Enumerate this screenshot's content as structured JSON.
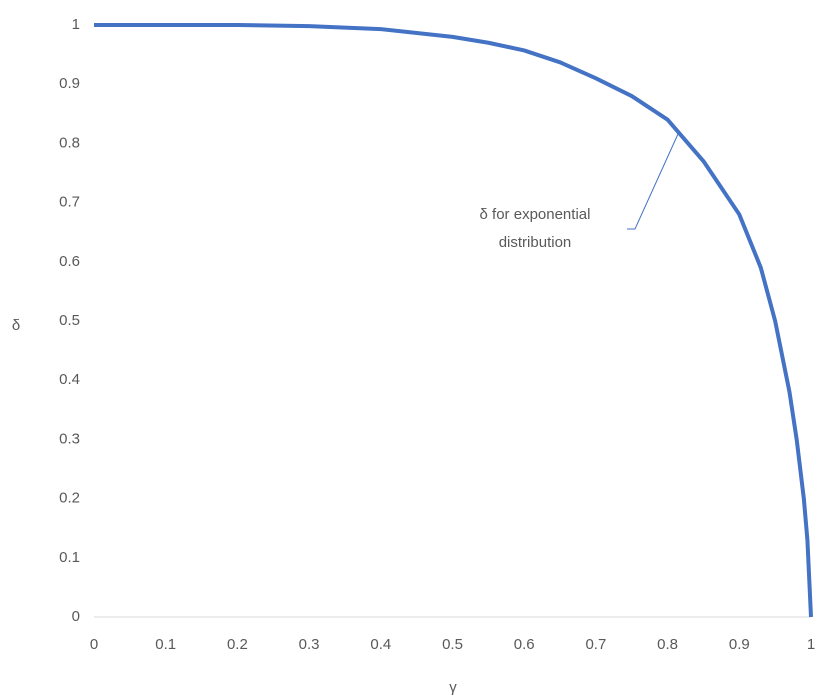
{
  "chart_data": {
    "type": "line",
    "x": [
      0,
      0.1,
      0.2,
      0.3,
      0.4,
      0.5,
      0.55,
      0.6,
      0.65,
      0.7,
      0.75,
      0.8,
      0.85,
      0.9,
      0.93,
      0.95,
      0.97,
      0.98,
      0.99,
      0.995,
      1
    ],
    "series": [
      {
        "name": "δ for exponential distribution",
        "color": "#4472c4",
        "values": [
          1,
          1,
          1,
          0.998,
          0.993,
          0.98,
          0.97,
          0.957,
          0.937,
          0.91,
          0.88,
          0.84,
          0.77,
          0.68,
          0.59,
          0.5,
          0.38,
          0.3,
          0.2,
          0.13,
          0
        ]
      }
    ],
    "xlabel": "γ",
    "ylabel": "δ",
    "annotation": [
      "δ for exponential",
      "distribution"
    ],
    "xlim": [
      0,
      1
    ],
    "ylim": [
      0,
      1
    ],
    "xticks": [
      0,
      0.1,
      0.2,
      0.3,
      0.4,
      0.5,
      0.6,
      0.7,
      0.8,
      0.9,
      1
    ],
    "yticks": [
      0,
      0.1,
      0.2,
      0.3,
      0.4,
      0.5,
      0.6,
      0.7,
      0.8,
      0.9,
      1
    ],
    "grid": false
  }
}
